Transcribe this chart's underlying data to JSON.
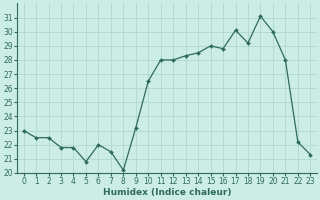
{
  "x": [
    0,
    1,
    2,
    3,
    4,
    5,
    6,
    7,
    8,
    9,
    10,
    11,
    12,
    13,
    14,
    15,
    16,
    17,
    18,
    19,
    20,
    21,
    22,
    23
  ],
  "y": [
    23.0,
    22.5,
    22.5,
    21.8,
    21.8,
    20.8,
    22.0,
    21.5,
    20.2,
    23.2,
    26.5,
    28.0,
    28.0,
    28.3,
    28.5,
    29.0,
    28.8,
    30.1,
    29.2,
    31.1,
    30.0,
    28.0,
    22.2,
    21.3
  ],
  "line_color": "#2e6b5e",
  "marker": "D",
  "marker_size": 2.0,
  "bg_color": "#ccece6",
  "grid_color": "#b0d8d0",
  "xlabel": "Humidex (Indice chaleur)",
  "ylim": [
    20,
    32
  ],
  "xlim": [
    -0.5,
    23.5
  ],
  "yticks": [
    20,
    21,
    22,
    23,
    24,
    25,
    26,
    27,
    28,
    29,
    30,
    31
  ],
  "xticks": [
    0,
    1,
    2,
    3,
    4,
    5,
    6,
    7,
    8,
    9,
    10,
    11,
    12,
    13,
    14,
    15,
    16,
    17,
    18,
    19,
    20,
    21,
    22,
    23
  ],
  "label_fontsize": 6.5,
  "tick_fontsize": 5.5
}
